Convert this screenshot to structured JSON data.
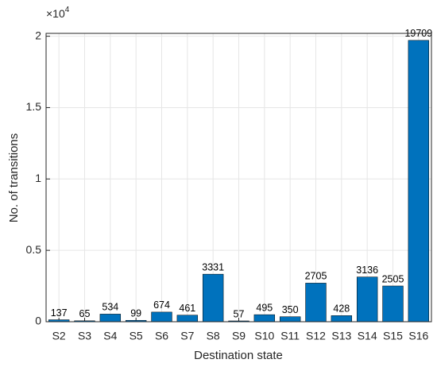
{
  "chart_data": {
    "type": "bar",
    "xlabel": "Destination state",
    "ylabel": "No. of transitions",
    "y_multiplier": {
      "base": "×10",
      "exponent": "4"
    },
    "categories": [
      "S2",
      "S3",
      "S4",
      "S5",
      "S6",
      "S7",
      "S8",
      "S9",
      "S10",
      "S11",
      "S12",
      "S13",
      "S14",
      "S15",
      "S16"
    ],
    "values": [
      137,
      65,
      534,
      99,
      674,
      461,
      3331,
      57,
      495,
      350,
      2705,
      428,
      3136,
      2505,
      19709
    ],
    "color": "#0072bd",
    "ylim": [
      0,
      20200
    ],
    "yticks": [
      0,
      {
        "value": 5000,
        "label": "0.5"
      },
      {
        "value": 10000,
        "label": "1"
      },
      {
        "value": 15000,
        "label": "1.5"
      },
      {
        "value": 20000,
        "label": "2"
      }
    ],
    "grid": true
  }
}
